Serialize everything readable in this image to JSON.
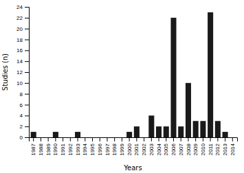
{
  "chart_data": {
    "type": "bar",
    "xlabel": "Years",
    "ylabel": "Studies (n)",
    "categories": [
      "1987",
      "1988",
      "1989",
      "1990",
      "1991",
      "1992",
      "1993",
      "1994",
      "1995",
      "1996",
      "1997",
      "1998",
      "1999",
      "2000",
      "2001",
      "2002",
      "2003",
      "2004",
      "2005",
      "2006",
      "2007",
      "2008",
      "2009",
      "2010",
      "2011",
      "2012",
      "2013",
      "2014"
    ],
    "values": [
      1,
      0,
      0,
      1,
      0,
      0,
      1,
      0,
      0,
      0,
      0,
      0,
      0,
      1,
      2,
      0,
      4,
      2,
      2,
      22,
      2,
      10,
      3,
      3,
      23,
      3,
      1,
      0
    ],
    "color": "#1a1a1a",
    "ylim": [
      0,
      24
    ],
    "yticks": [
      0,
      2,
      4,
      6,
      8,
      10,
      12,
      14,
      16,
      18,
      20,
      22,
      24
    ],
    "grid": false
  }
}
